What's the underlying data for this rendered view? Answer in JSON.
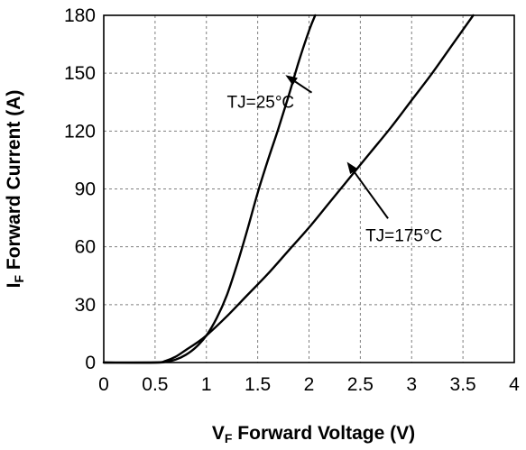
{
  "chart_data": {
    "type": "line",
    "xlabel": {
      "main": "V",
      "sub": "F",
      "rest": " Forward Voltage (V)"
    },
    "ylabel": {
      "main": "I",
      "sub": "F",
      "rest": " Forward Current (A)"
    },
    "xlim": [
      0,
      4
    ],
    "ylim": [
      0,
      180
    ],
    "x_ticks": [
      0,
      0.5,
      1,
      1.5,
      2,
      2.5,
      3,
      3.5,
      4
    ],
    "x_tick_labels": [
      "0",
      "0.5",
      "1",
      "1.5",
      "2",
      "2.5",
      "3",
      "3.5",
      "4"
    ],
    "y_ticks": [
      0,
      30,
      60,
      90,
      120,
      150,
      180
    ],
    "y_tick_labels": [
      "0",
      "30",
      "60",
      "90",
      "120",
      "150",
      "180"
    ],
    "grid": true,
    "series": [
      {
        "name": "TJ=25°C",
        "x": [
          0,
          0.5,
          0.6,
          0.7,
          0.8,
          0.9,
          1.0,
          1.1,
          1.2,
          1.3,
          1.4,
          1.5,
          1.6,
          1.7,
          1.8,
          1.9,
          2.0,
          2.06
        ],
        "y": [
          0,
          0,
          0.3,
          1.5,
          4,
          8,
          14,
          23,
          35,
          51,
          69,
          88,
          105,
          121,
          138,
          156,
          172,
          180
        ]
      },
      {
        "name": "TJ=175°C",
        "x": [
          0,
          0.5,
          0.6,
          0.7,
          0.8,
          0.9,
          1.0,
          1.2,
          1.4,
          1.6,
          1.8,
          2.0,
          2.2,
          2.4,
          2.6,
          2.8,
          3.0,
          3.2,
          3.4,
          3.6
        ],
        "y": [
          0,
          0,
          0.8,
          3,
          6.5,
          10,
          14,
          24,
          35,
          46,
          58,
          70,
          83,
          96,
          109,
          122,
          136,
          150,
          165,
          180
        ]
      }
    ],
    "annotations": [
      {
        "text": "TJ=25°C",
        "anchor_xy": [
          1.2,
          132
        ],
        "arrow_to": [
          1.77,
          149
        ]
      },
      {
        "text": "TJ=175°C",
        "anchor_xy": [
          2.55,
          63
        ],
        "arrow_to": [
          2.37,
          104
        ]
      }
    ]
  }
}
